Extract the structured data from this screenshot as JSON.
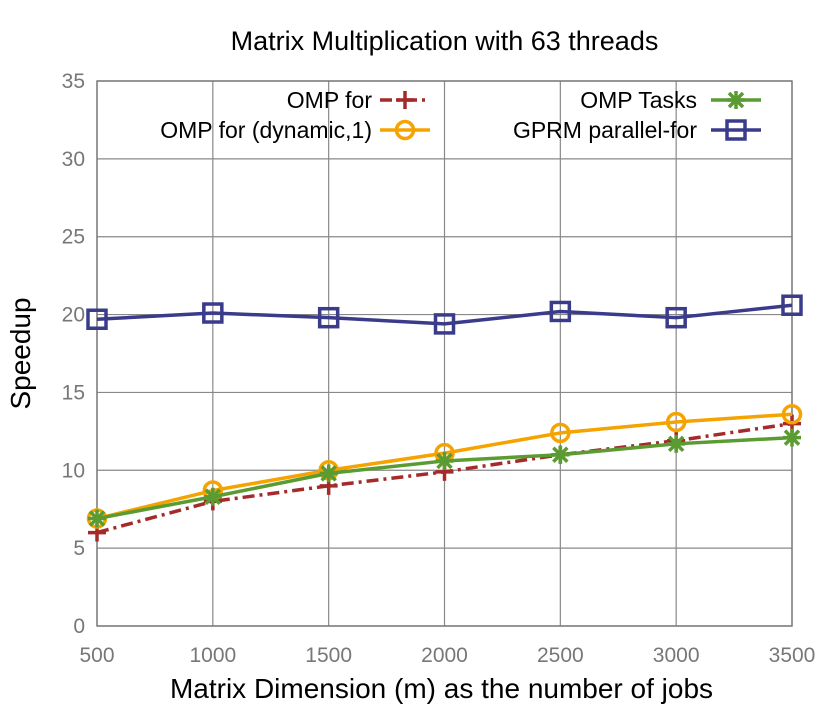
{
  "chart_data": {
    "type": "line",
    "title": "Matrix Multiplication with 63 threads",
    "xlabel": "Matrix Dimension (m) as the number of jobs",
    "ylabel": "Speedup",
    "x": [
      500,
      1000,
      1500,
      2000,
      2500,
      3000,
      3500
    ],
    "xlim": [
      500,
      3500
    ],
    "ylim": [
      0,
      35
    ],
    "xticks": [
      500,
      1000,
      1500,
      2000,
      2500,
      3000,
      3500
    ],
    "yticks": [
      0,
      5,
      10,
      15,
      20,
      25,
      30,
      35
    ],
    "grid": true,
    "legend_position": "top",
    "series": [
      {
        "name": "OMP for",
        "color": "#a52a2a",
        "marker": "plus",
        "dash": "dash-dot",
        "values": [
          6.0,
          8.0,
          9.0,
          9.9,
          11.0,
          11.9,
          13.0
        ]
      },
      {
        "name": "OMP for (dynamic,1)",
        "color": "#f5a300",
        "marker": "circle",
        "dash": "solid",
        "values": [
          6.9,
          8.7,
          10.0,
          11.1,
          12.4,
          13.1,
          13.6
        ]
      },
      {
        "name": "OMP Tasks",
        "color": "#5a9b32",
        "marker": "asterisk",
        "dash": "solid",
        "values": [
          6.9,
          8.3,
          9.8,
          10.6,
          11.0,
          11.7,
          12.1
        ]
      },
      {
        "name": "GPRM parallel-for",
        "color": "#3b3b8c",
        "marker": "square",
        "dash": "solid",
        "values": [
          19.7,
          20.1,
          19.8,
          19.4,
          20.2,
          19.8,
          20.6
        ]
      }
    ]
  }
}
